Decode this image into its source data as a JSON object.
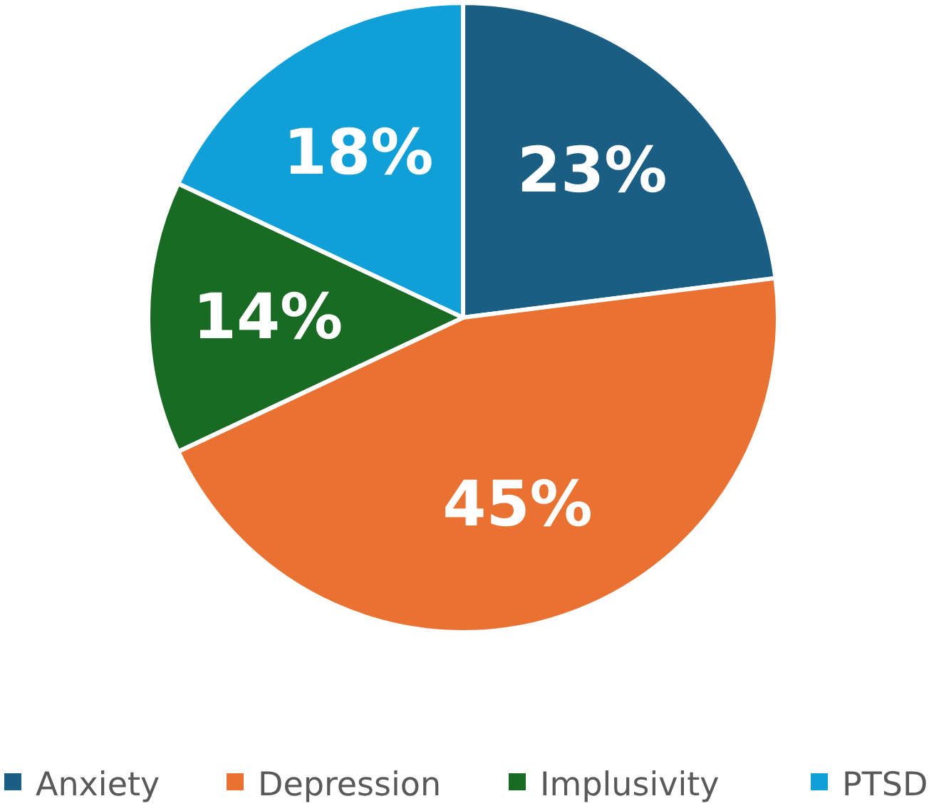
{
  "chart_data": {
    "type": "pie",
    "categories": [
      "Anxiety",
      "Depression",
      "Implusivity",
      "PTSD"
    ],
    "values": [
      23,
      45,
      14,
      18
    ],
    "colors": [
      "#1b5e83",
      "#e97132",
      "#196b24",
      "#119fd8"
    ],
    "value_labels": [
      "23%",
      "45%",
      "14%",
      "18%"
    ],
    "legend": "bottom"
  }
}
